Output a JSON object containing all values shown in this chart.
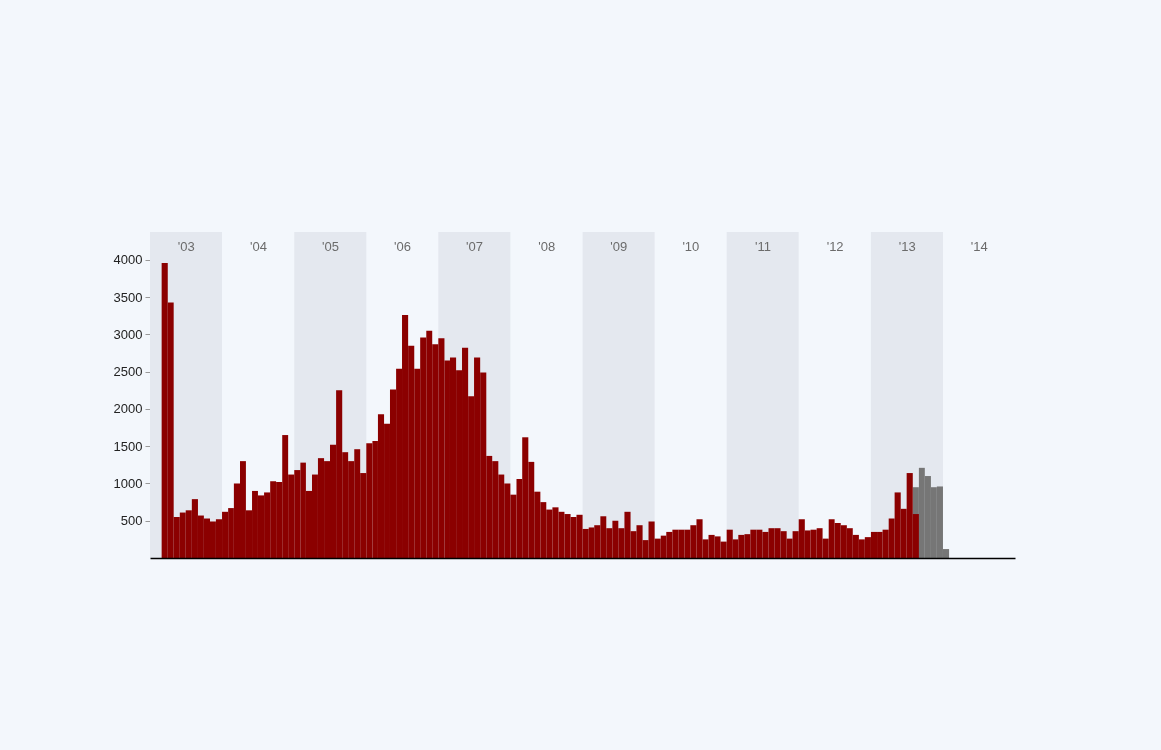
{
  "chart_data": {
    "type": "bar",
    "series": [
      {
        "color": "#8b0000",
        "x": [
          "2003-03",
          "2003-04",
          "2003-05",
          "2003-06",
          "2003-07",
          "2003-08",
          "2003-09",
          "2003-10",
          "2003-11",
          "2003-12",
          "2004-01",
          "2004-02",
          "2004-03",
          "2004-04",
          "2004-05",
          "2004-06",
          "2004-07",
          "2004-08",
          "2004-09",
          "2004-10",
          "2004-11",
          "2004-12",
          "2005-01",
          "2005-02",
          "2005-03",
          "2005-04",
          "2005-05",
          "2005-06",
          "2005-07",
          "2005-08",
          "2005-09",
          "2005-10",
          "2005-11",
          "2005-12",
          "2006-01",
          "2006-02",
          "2006-03",
          "2006-04",
          "2006-05",
          "2006-06",
          "2006-07",
          "2006-08",
          "2006-09",
          "2006-10",
          "2006-11",
          "2006-12",
          "2007-01",
          "2007-02",
          "2007-03",
          "2007-04",
          "2007-05",
          "2007-06",
          "2007-07",
          "2007-08",
          "2007-09",
          "2007-10",
          "2007-11",
          "2007-12",
          "2008-01",
          "2008-02",
          "2008-03",
          "2008-04",
          "2008-05",
          "2008-06",
          "2008-07",
          "2008-08",
          "2008-09",
          "2008-10",
          "2008-11",
          "2008-12",
          "2009-01",
          "2009-02",
          "2009-03",
          "2009-04",
          "2009-05",
          "2009-06",
          "2009-07",
          "2009-08",
          "2009-09",
          "2009-10",
          "2009-11",
          "2009-12",
          "2010-01",
          "2010-02",
          "2010-03",
          "2010-04",
          "2010-05",
          "2010-06",
          "2010-07",
          "2010-08",
          "2010-09",
          "2010-10",
          "2010-11",
          "2010-12",
          "2011-01",
          "2011-02",
          "2011-03",
          "2011-04",
          "2011-05",
          "2011-06",
          "2011-07",
          "2011-08",
          "2011-09",
          "2011-10",
          "2011-11",
          "2011-12",
          "2012-01",
          "2012-02",
          "2012-03",
          "2012-04",
          "2012-05",
          "2012-06",
          "2012-07",
          "2012-08",
          "2012-09",
          "2012-10",
          "2012-11",
          "2012-12",
          "2013-01",
          "2013-02",
          "2013-03",
          "2013-04",
          "2013-05",
          "2013-06",
          "2013-07",
          "2013-08"
        ],
        "values": [
          3960,
          3430,
          550,
          610,
          640,
          790,
          570,
          530,
          490,
          520,
          620,
          670,
          1000,
          1300,
          640,
          900,
          840,
          880,
          1030,
          1020,
          1650,
          1120,
          1180,
          1280,
          900,
          1120,
          1340,
          1300,
          1520,
          2250,
          1420,
          1300,
          1460,
          1140,
          1540,
          1570,
          1930,
          1800,
          2260,
          2540,
          3260,
          2850,
          2540,
          2960,
          3050,
          2870,
          2950,
          2650,
          2690,
          2520,
          2820,
          2170,
          2690,
          2490,
          1370,
          1300,
          1120,
          1000,
          850,
          1060,
          1620,
          1290,
          890,
          750,
          650,
          680,
          620,
          590,
          550,
          580,
          390,
          410,
          440,
          560,
          400,
          500,
          400,
          620,
          360,
          440,
          240,
          490,
          260,
          300,
          350,
          380,
          380,
          380,
          440,
          520,
          250,
          310,
          290,
          220,
          380,
          250,
          310,
          320,
          380,
          380,
          350,
          400,
          400,
          360,
          260,
          360,
          520,
          370,
          380,
          400,
          260,
          520,
          470,
          440,
          400,
          310,
          250,
          280,
          350,
          350,
          380,
          530,
          880,
          660,
          1140,
          590
        ]
      },
      {
        "color": "#767676",
        "x": [
          "2013-08",
          "2013-09",
          "2013-10",
          "2013-11",
          "2013-12",
          "2014-01"
        ],
        "values": [
          950,
          1210,
          1100,
          950,
          960,
          120
        ]
      }
    ],
    "xlim": [
      "2003-01",
      "2015-01"
    ],
    "xticks": [
      {
        "value": "2003-07",
        "label": "'03"
      },
      {
        "value": "2004-07",
        "label": "'04"
      },
      {
        "value": "2005-07",
        "label": "'05"
      },
      {
        "value": "2006-07",
        "label": "'06"
      },
      {
        "value": "2007-07",
        "label": "'07"
      },
      {
        "value": "2008-07",
        "label": "'08"
      },
      {
        "value": "2009-07",
        "label": "'09"
      },
      {
        "value": "2010-07",
        "label": "'10"
      },
      {
        "value": "2011-07",
        "label": "'11"
      },
      {
        "value": "2012-07",
        "label": "'12"
      },
      {
        "value": "2013-07",
        "label": "'13"
      },
      {
        "value": "2014-07",
        "label": "'14"
      }
    ],
    "ylim": [
      0,
      4375
    ],
    "yticks": [
      500,
      1000,
      1500,
      2000,
      2500,
      3000,
      3500,
      4000
    ],
    "bands": [
      {
        "axis": "x",
        "from": "2003-01",
        "to": "2004-01",
        "color": "#e4e8ef"
      },
      {
        "axis": "x",
        "from": "2005-01",
        "to": "2006-01",
        "color": "#e4e8ef"
      },
      {
        "axis": "x",
        "from": "2007-01",
        "to": "2008-01",
        "color": "#e4e8ef"
      },
      {
        "axis": "x",
        "from": "2009-01",
        "to": "2010-01",
        "color": "#e4e8ef"
      },
      {
        "axis": "x",
        "from": "2011-01",
        "to": "2012-01",
        "color": "#e4e8ef"
      },
      {
        "axis": "x",
        "from": "2013-01",
        "to": "2014-01",
        "color": "#e4e8ef"
      }
    ],
    "grid": false
  }
}
